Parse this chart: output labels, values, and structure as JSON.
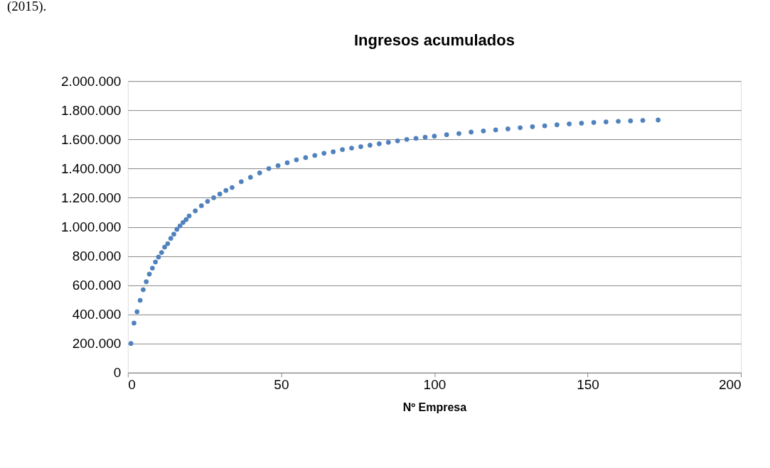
{
  "chart_data": {
    "type": "scatter",
    "title": "Ingresos acumulados",
    "xlabel": "Nº Empresa",
    "annotations": [
      "(2015)."
    ],
    "x": [
      1,
      2,
      3,
      4,
      5,
      6,
      7,
      8,
      9,
      10,
      11,
      12,
      13,
      14,
      15,
      16,
      17,
      18,
      19,
      20,
      22,
      24,
      26,
      28,
      30,
      32,
      34,
      37,
      40,
      43,
      46,
      49,
      52,
      55,
      58,
      61,
      64,
      67,
      70,
      73,
      76,
      79,
      82,
      85,
      88,
      91,
      94,
      97,
      100,
      104,
      108,
      112,
      116,
      120,
      124,
      128,
      132,
      136,
      140,
      144,
      148,
      152,
      156,
      160,
      164,
      168,
      173
    ],
    "series": [
      {
        "color": "#4f81bd",
        "values": [
          200000,
          340000,
          418000,
          496000,
          569000,
          624000,
          676000,
          717000,
          759000,
          793000,
          824000,
          861000,
          885000,
          921000,
          950000,
          983000,
          1007000,
          1030000,
          1050000,
          1075000,
          1110000,
          1145000,
          1175000,
          1200000,
          1225000,
          1250000,
          1270000,
          1310000,
          1340000,
          1370000,
          1400000,
          1420000,
          1440000,
          1460000,
          1475000,
          1490000,
          1505000,
          1515000,
          1530000,
          1540000,
          1550000,
          1560000,
          1570000,
          1580000,
          1590000,
          1600000,
          1607000,
          1615000,
          1622000,
          1632000,
          1640000,
          1650000,
          1658000,
          1665000,
          1672000,
          1680000,
          1687000,
          1693000,
          1700000,
          1706000,
          1711000,
          1716000,
          1720000,
          1724000,
          1727000,
          1730000,
          1733000
        ]
      }
    ],
    "xlim": [
      0,
      200
    ],
    "xticks": [
      0,
      50,
      100,
      150,
      200
    ],
    "ylim": [
      0,
      2000000
    ],
    "yticks": [
      {
        "value": 0,
        "label": "0"
      },
      {
        "value": 200000,
        "label": "200.000"
      },
      {
        "value": 400000,
        "label": "400.000"
      },
      {
        "value": 600000,
        "label": "600.000"
      },
      {
        "value": 800000,
        "label": "800.000"
      },
      {
        "value": 1000000,
        "label": "1.000.000"
      },
      {
        "value": 1200000,
        "label": "1.200.000"
      },
      {
        "value": 1400000,
        "label": "1.400.000"
      },
      {
        "value": 1600000,
        "label": "1.600.000"
      },
      {
        "value": 1800000,
        "label": "1.800.000"
      },
      {
        "value": 2000000,
        "label": "2.000.000"
      }
    ],
    "grid": "y",
    "marker": "circle"
  }
}
